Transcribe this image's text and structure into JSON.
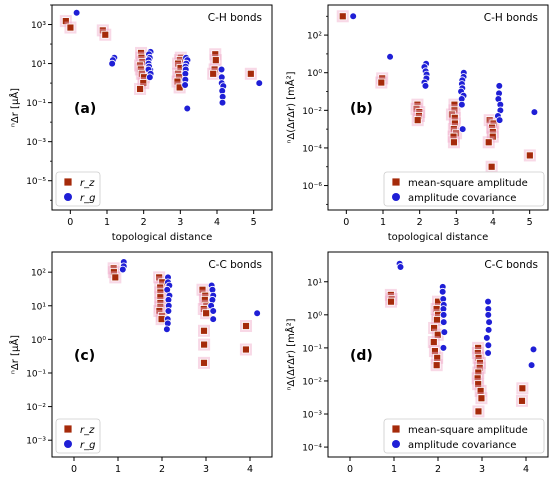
{
  "figure": {
    "colors": {
      "rz_fill": "#a52a0a",
      "rz_edge": "#ffffff",
      "rz_halo": "#f0a8c8",
      "rg": "#1f1fd6",
      "frame": "#000000"
    }
  },
  "chart_data": [
    {
      "id": "a",
      "type": "scatter",
      "panel_label": "(a)",
      "title": "C-H bonds",
      "xlabel": "topological distance",
      "ylabel": "ⁿΔr [μÅ]",
      "y_scale": "log",
      "xlim": [
        -0.5,
        5.5
      ],
      "ylim_exp": [
        -6.5,
        4
      ],
      "xticks": [
        "0",
        "1",
        "2",
        "3",
        "4",
        "5"
      ],
      "x_tick_values": [
        0,
        1,
        2,
        3,
        4,
        5
      ],
      "yticks": [
        "10⁻⁵",
        "10⁻³",
        "10⁻¹",
        "10¹",
        "10³"
      ],
      "y_tick_exps": [
        -5,
        -3,
        -1,
        1,
        3
      ],
      "legend": {
        "position": "lower-left",
        "entries": [
          "r_z",
          "r_g"
        ]
      },
      "series": [
        {
          "name": "r_z",
          "marker": "square",
          "x": [
            0,
            0,
            1,
            1,
            2,
            2,
            2,
            2,
            2,
            2,
            2,
            2,
            2,
            3,
            3,
            3,
            3,
            3,
            3,
            3,
            3,
            4,
            4,
            4,
            4,
            5
          ],
          "y": [
            1500,
            700,
            500,
            300,
            35,
            20,
            12,
            8,
            5,
            3,
            2,
            1,
            0.5,
            20,
            15,
            10,
            6,
            3,
            2,
            1.2,
            0.6,
            30,
            15,
            5,
            3,
            3
          ]
        },
        {
          "name": "r_g",
          "marker": "circle",
          "x": [
            0,
            1,
            1,
            1,
            2,
            2,
            2,
            2,
            2,
            2,
            2,
            2,
            2,
            2,
            3,
            3,
            3,
            3,
            3,
            3,
            3,
            3,
            3,
            4,
            4,
            4,
            4,
            4,
            4,
            4,
            5
          ],
          "y": [
            4000,
            20,
            15,
            10,
            5,
            40,
            30,
            20,
            15,
            10,
            7,
            5,
            3,
            2,
            20,
            15,
            10,
            7,
            5,
            3,
            1.5,
            0.8,
            0.05,
            5,
            2,
            1,
            0.7,
            0.4,
            0.2,
            0.1,
            1
          ]
        }
      ]
    },
    {
      "id": "b",
      "type": "scatter",
      "panel_label": "(b)",
      "title": "C-H bonds",
      "xlabel": "topological distance",
      "ylabel": "ⁿΔ(ΔrΔr) [mÅ²]",
      "y_scale": "log",
      "xlim": [
        -0.5,
        5.5
      ],
      "ylim_exp": [
        -7.3,
        3.6
      ],
      "xticks": [
        "0",
        "1",
        "2",
        "3",
        "4",
        "5"
      ],
      "x_tick_values": [
        0,
        1,
        2,
        3,
        4,
        5
      ],
      "yticks": [
        "10⁻⁶",
        "10⁻⁴",
        "10⁻²",
        "10⁰",
        "10²"
      ],
      "y_tick_exps": [
        -6,
        -4,
        -2,
        0,
        2
      ],
      "legend": {
        "position": "lower-right",
        "entries": [
          "mean-square amplitude",
          "amplitude covariance"
        ]
      },
      "series": [
        {
          "name": "mean-square amplitude",
          "marker": "square",
          "x": [
            0,
            1,
            1,
            2,
            2,
            2,
            2,
            2,
            3,
            3,
            3,
            3,
            3,
            3,
            3,
            3,
            3,
            4,
            4,
            4,
            4,
            4,
            4,
            4,
            5
          ],
          "y": [
            1000,
            0.5,
            0.3,
            0.02,
            0.012,
            0.008,
            0.005,
            0.003,
            0.02,
            0.01,
            0.006,
            0.004,
            0.002,
            0.001,
            0.0006,
            0.0004,
            0.0002,
            0.003,
            0.002,
            0.0012,
            0.0007,
            0.0004,
            0.0002,
            1e-05,
            4e-05
          ]
        },
        {
          "name": "amplitude covariance",
          "marker": "circle",
          "x": [
            0,
            1,
            2,
            2,
            2,
            2,
            2,
            2,
            2,
            3,
            3,
            3,
            3,
            3,
            3,
            3,
            3,
            3,
            3,
            4,
            4,
            4,
            4,
            4,
            4,
            4,
            5
          ],
          "y": [
            1000,
            7,
            3,
            2,
            1.2,
            0.8,
            0.5,
            0.3,
            0.2,
            1,
            0.6,
            0.4,
            0.25,
            0.15,
            0.1,
            0.06,
            0.04,
            0.02,
            0.001,
            0.2,
            0.08,
            0.04,
            0.02,
            0.01,
            0.005,
            0.003,
            0.008
          ]
        }
      ]
    },
    {
      "id": "c",
      "type": "scatter",
      "panel_label": "(c)",
      "title": "C-C bonds",
      "xlabel": "topological distance",
      "ylabel": "ⁿΔr [μÅ]",
      "y_scale": "log",
      "xlim": [
        -0.5,
        4.5
      ],
      "ylim_exp": [
        -3.5,
        2.6
      ],
      "xticks": [
        "0",
        "1",
        "2",
        "3",
        "4"
      ],
      "x_tick_values": [
        0,
        1,
        2,
        3,
        4
      ],
      "yticks": [
        "10⁻³",
        "10⁻²",
        "10⁻¹",
        "10⁰",
        "10¹",
        "10²"
      ],
      "y_tick_exps": [
        -3,
        -2,
        -1,
        0,
        1,
        2
      ],
      "legend": {
        "position": "lower-left",
        "entries": [
          "r_z",
          "r_g"
        ]
      },
      "series": [
        {
          "name": "r_z",
          "marker": "square",
          "x": [
            1,
            1,
            1,
            2,
            2,
            2,
            2,
            2,
            2,
            2,
            2,
            2,
            2,
            3,
            3,
            3,
            3,
            3,
            3,
            3,
            3,
            3,
            4,
            4
          ],
          "y": [
            130,
            100,
            70,
            70,
            50,
            35,
            25,
            18,
            12,
            9,
            7,
            5,
            4,
            30,
            20,
            15,
            10,
            8,
            6,
            1.8,
            0.7,
            0.2,
            2.5,
            0.5
          ]
        },
        {
          "name": "r_g",
          "marker": "circle",
          "x": [
            1,
            1,
            1,
            2,
            2,
            2,
            2,
            2,
            2,
            2,
            2,
            2,
            2,
            2,
            3,
            3,
            3,
            3,
            3,
            3,
            3,
            4
          ],
          "y": [
            200,
            150,
            120,
            70,
            50,
            40,
            30,
            20,
            15,
            10,
            7,
            4,
            3,
            2,
            40,
            30,
            20,
            15,
            10,
            7,
            4,
            6
          ]
        }
      ]
    },
    {
      "id": "d",
      "type": "scatter",
      "panel_label": "(d)",
      "title": "C-C bonds",
      "xlabel": "topological distance",
      "ylabel": "ⁿΔ(ΔrΔr) [mÅ²]",
      "y_scale": "log",
      "xlim": [
        -0.5,
        4.5
      ],
      "ylim_exp": [
        -4.3,
        1.9
      ],
      "xticks": [
        "0",
        "1",
        "2",
        "3",
        "4"
      ],
      "x_tick_values": [
        0,
        1,
        2,
        3,
        4
      ],
      "yticks": [
        "10⁻⁴",
        "10⁻³",
        "10⁻²",
        "10⁻¹",
        "10⁰",
        "10¹"
      ],
      "y_tick_exps": [
        -4,
        -3,
        -2,
        -1,
        0,
        1
      ],
      "legend": {
        "position": "lower-right",
        "entries": [
          "mean-square amplitude",
          "amplitude covariance"
        ]
      },
      "series": [
        {
          "name": "mean-square amplitude",
          "marker": "square",
          "x": [
            1,
            1,
            1,
            2,
            2,
            2,
            2,
            2,
            2,
            2,
            2,
            2,
            2,
            3,
            3,
            3,
            3,
            3,
            3,
            3,
            3,
            3,
            3,
            3,
            4,
            4
          ],
          "y": [
            4,
            3,
            2.5,
            2.5,
            1.5,
            1,
            0.7,
            0.4,
            0.25,
            0.15,
            0.08,
            0.05,
            0.03,
            0.1,
            0.07,
            0.05,
            0.035,
            0.025,
            0.018,
            0.012,
            0.008,
            0.005,
            0.003,
            0.0012,
            0.006,
            0.0025
          ]
        },
        {
          "name": "amplitude covariance",
          "marker": "circle",
          "x": [
            1,
            1,
            2,
            2,
            2,
            2,
            2,
            2,
            2,
            2,
            2,
            3,
            3,
            3,
            3,
            3,
            3,
            3,
            3,
            4,
            4
          ],
          "y": [
            35,
            28,
            7,
            5,
            3,
            2,
            1.5,
            1,
            0.6,
            0.3,
            0.1,
            2.5,
            1.5,
            1,
            0.6,
            0.35,
            0.2,
            0.12,
            0.07,
            0.09,
            0.03
          ]
        }
      ]
    }
  ]
}
